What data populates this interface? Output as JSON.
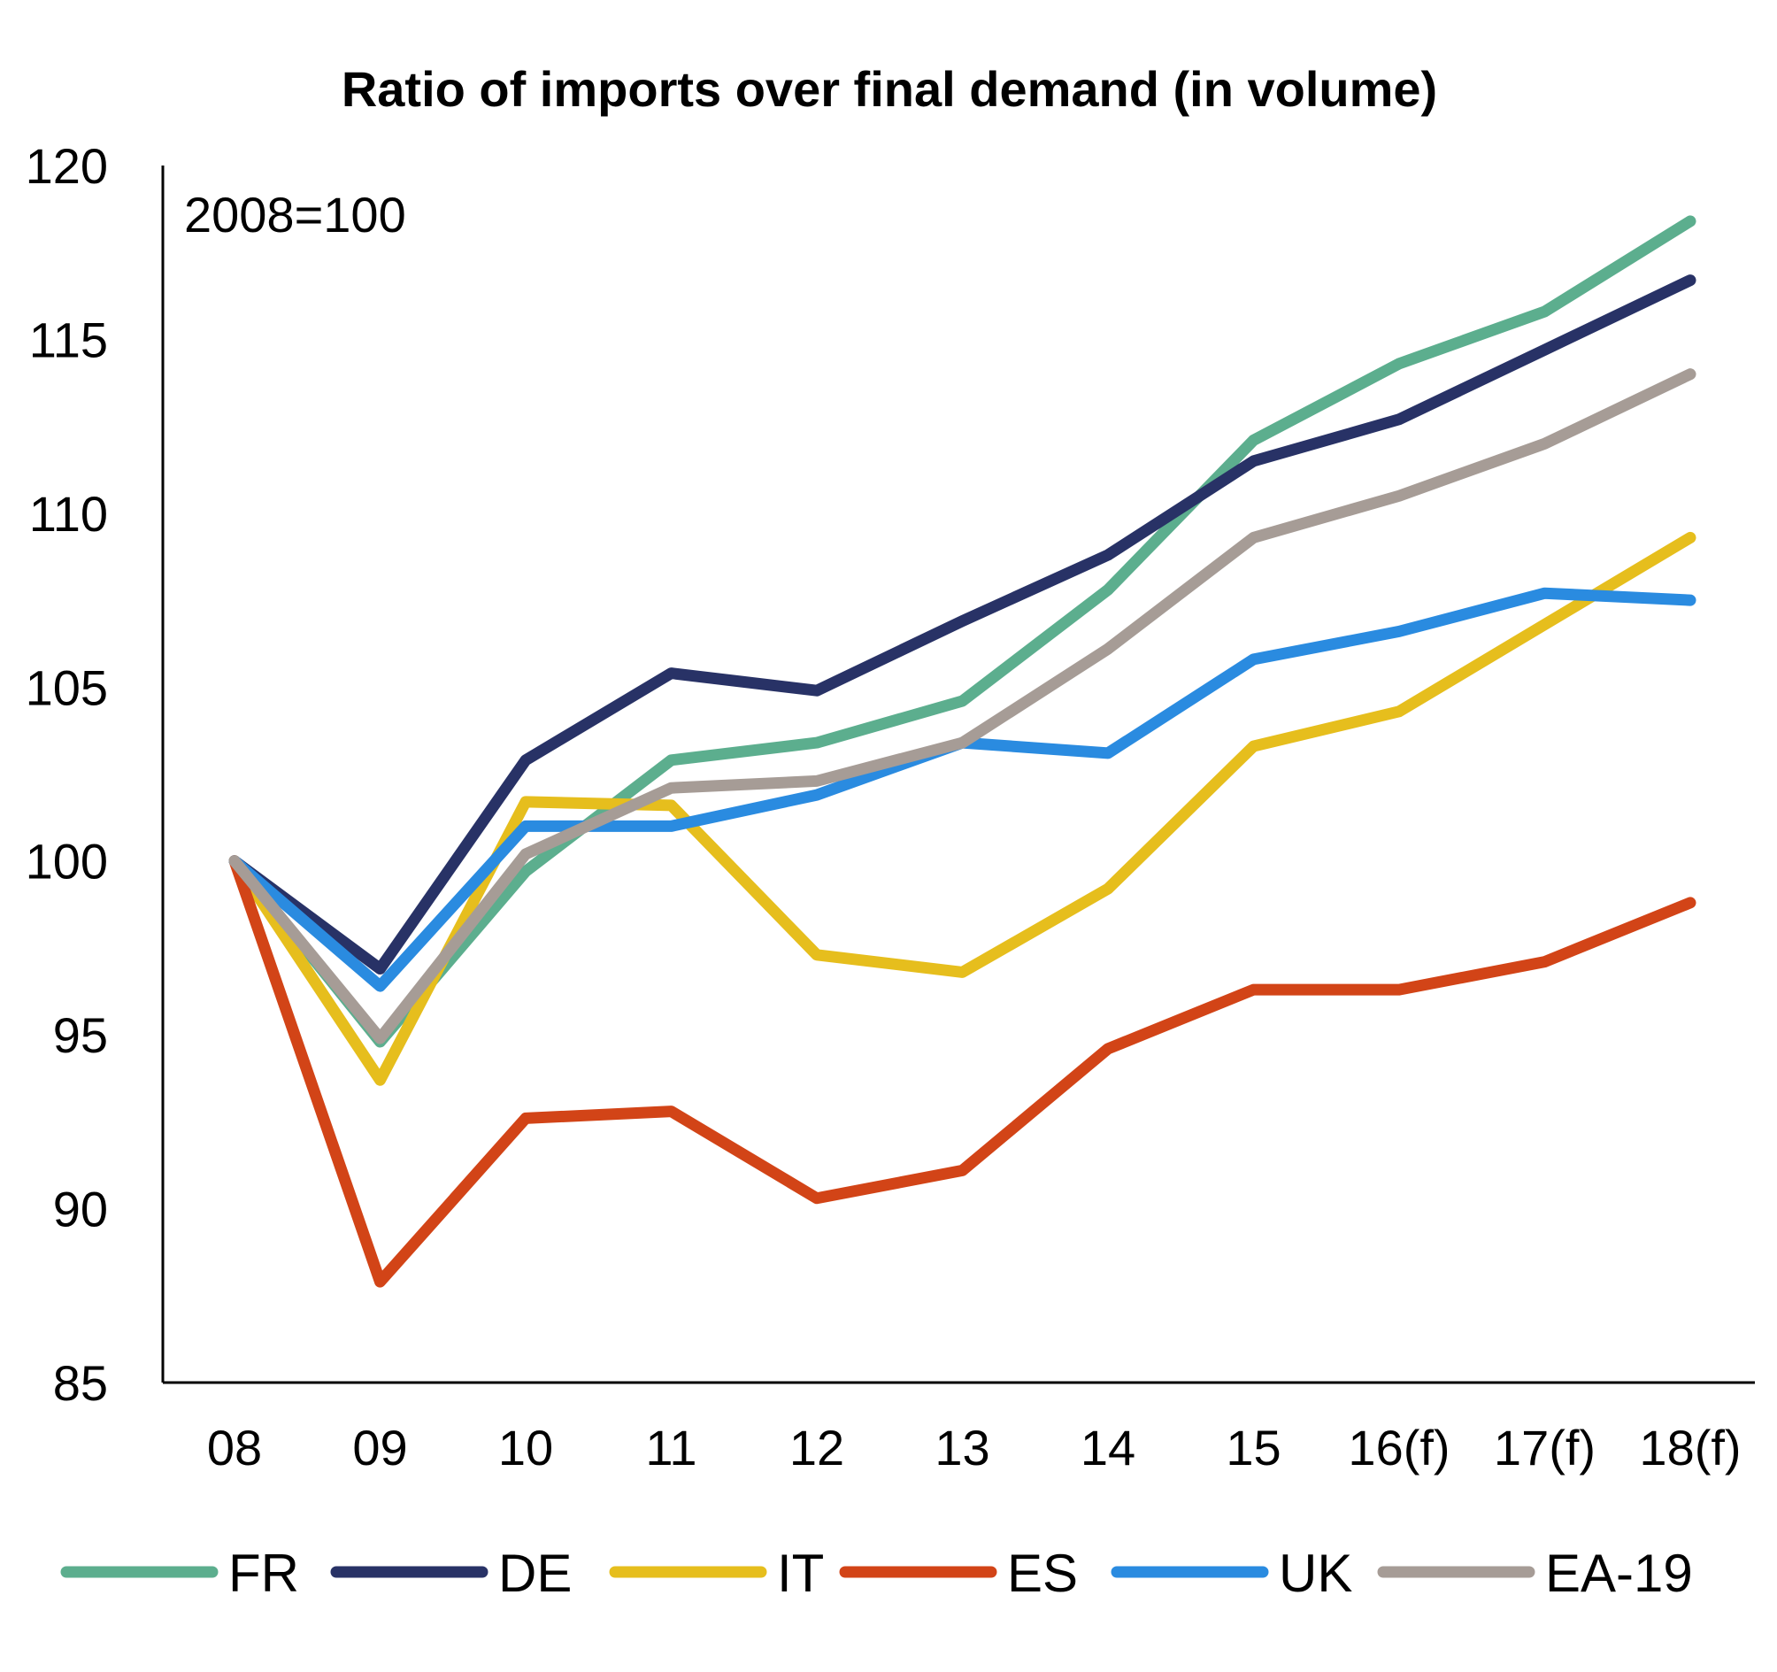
{
  "chart_data": {
    "type": "line",
    "title": "Ratio of imports over final demand (in volume)",
    "annotation": "2008=100",
    "categories": [
      "08",
      "09",
      "10",
      "11",
      "12",
      "13",
      "14",
      "15",
      "16(f)",
      "17(f)",
      "18(f)"
    ],
    "ylim": [
      85,
      120
    ],
    "yticks": [
      "120",
      "115",
      "110",
      "105",
      "100",
      "95",
      "90",
      "85"
    ],
    "xlabel": "",
    "ylabel": "",
    "grid": false,
    "legend_position": "bottom",
    "series": [
      {
        "name": "FR",
        "color": "#5cae8e",
        "values": [
          100,
          94.8,
          99.7,
          102.9,
          103.4,
          104.6,
          107.8,
          112.1,
          114.3,
          115.8,
          118.4
        ]
      },
      {
        "name": "DE",
        "color": "#283266",
        "values": [
          100,
          96.9,
          102.9,
          105.4,
          104.9,
          106.9,
          108.8,
          111.5,
          112.7,
          114.7,
          116.7
        ]
      },
      {
        "name": "IT",
        "color": "#e6be1d",
        "values": [
          100,
          93.7,
          101.7,
          101.6,
          97.3,
          96.8,
          99.2,
          103.3,
          104.3,
          106.8,
          109.3
        ]
      },
      {
        "name": "ES",
        "color": "#d24417",
        "values": [
          100,
          87.9,
          92.6,
          92.8,
          90.3,
          91.1,
          94.6,
          96.3,
          96.3,
          97.1,
          98.8
        ]
      },
      {
        "name": "UK",
        "color": "#2a8be0",
        "values": [
          100,
          96.4,
          101.0,
          101.0,
          101.9,
          103.4,
          103.1,
          105.8,
          106.6,
          107.7,
          107.5
        ]
      },
      {
        "name": "EA-19",
        "color": "#a69c96",
        "values": [
          100,
          94.9,
          100.2,
          102.1,
          102.3,
          103.4,
          106.1,
          109.3,
          110.5,
          112.0,
          114.0
        ]
      }
    ]
  }
}
